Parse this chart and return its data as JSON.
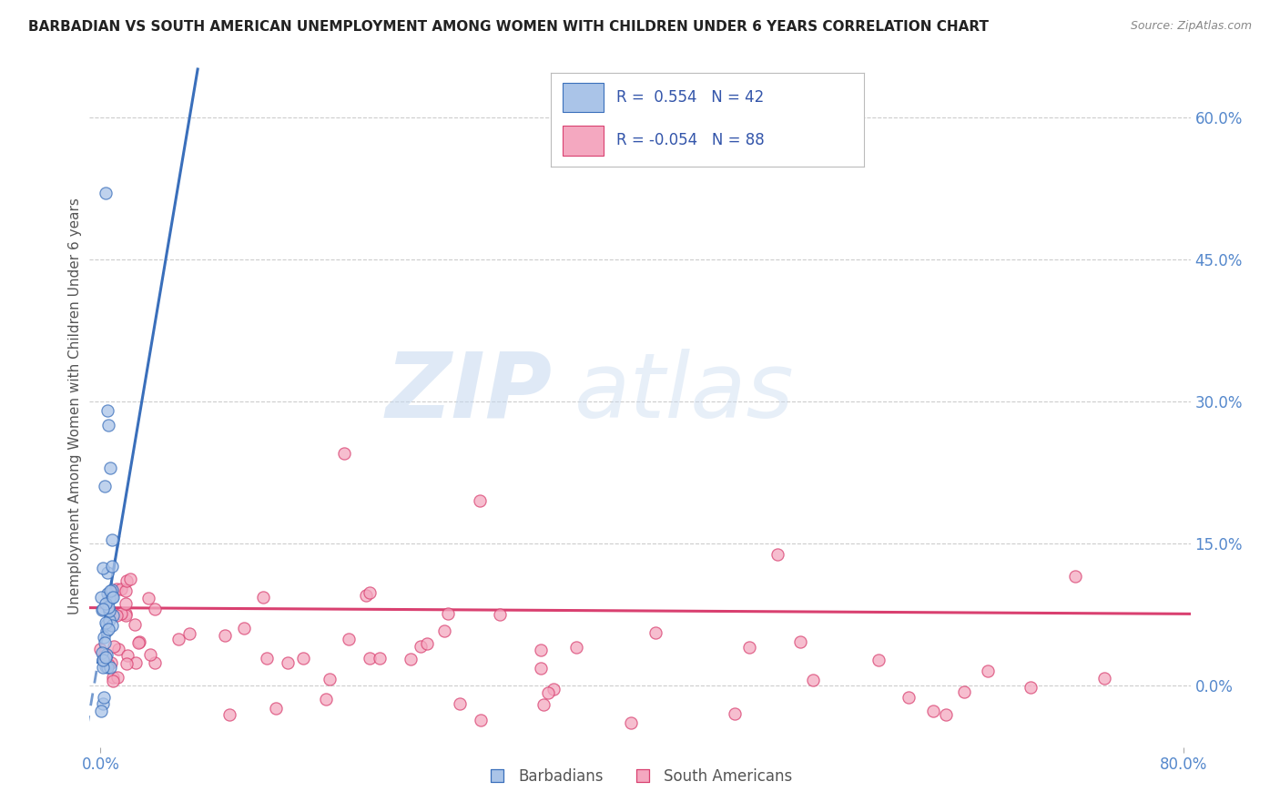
{
  "title": "BARBADIAN VS SOUTH AMERICAN UNEMPLOYMENT AMONG WOMEN WITH CHILDREN UNDER 6 YEARS CORRELATION CHART",
  "source": "Source: ZipAtlas.com",
  "ylabel": "Unemployment Among Women with Children Under 6 years",
  "legend_labels": [
    "Barbadians",
    "South Americans"
  ],
  "r_barbadian": 0.554,
  "n_barbadian": 42,
  "r_south_american": -0.054,
  "n_south_american": 88,
  "barbadian_color": "#aac4e8",
  "south_american_color": "#f4a8c0",
  "trendline_barbadian_color": "#3a6fbb",
  "trendline_south_american_color": "#d94070",
  "watermark_zip": "ZIP",
  "watermark_atlas": "atlas",
  "xmin": -0.008,
  "xmax": 0.805,
  "ymin": -0.065,
  "ymax": 0.655,
  "yticks": [
    0.0,
    0.15,
    0.3,
    0.45,
    0.6
  ],
  "ytick_labels": [
    "0.0%",
    "15.0%",
    "30.0%",
    "45.0%",
    "60.0%"
  ],
  "grid_color": "#cccccc",
  "background_color": "#ffffff",
  "title_color": "#222222",
  "axis_label_color": "#555555",
  "tick_color": "#5588cc",
  "legend_r_color": "#3355aa"
}
